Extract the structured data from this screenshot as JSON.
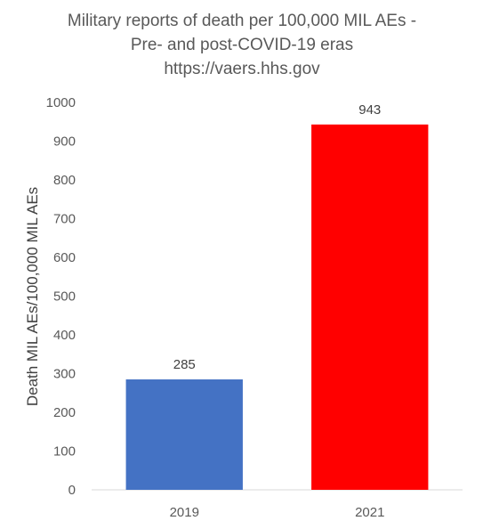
{
  "chart_data": {
    "type": "bar",
    "title": [
      "Military reports of death per 100,000 MIL AEs -",
      "Pre- and post-COVID-19 eras",
      "https://vaers.hhs.gov"
    ],
    "categories": [
      "2019",
      "2021"
    ],
    "values": [
      285,
      943
    ],
    "data_labels": [
      "285",
      "943"
    ],
    "bar_colors": [
      "#4472C4",
      "#FF0000"
    ],
    "xlabel": "",
    "ylabel": "Death MIL AEs/100,000 MIL AEs",
    "ylim": [
      0,
      1000
    ],
    "yticks": [
      "0",
      "100",
      "200",
      "300",
      "400",
      "500",
      "600",
      "700",
      "800",
      "900",
      "1000"
    ],
    "grid": false,
    "legend": "none"
  }
}
